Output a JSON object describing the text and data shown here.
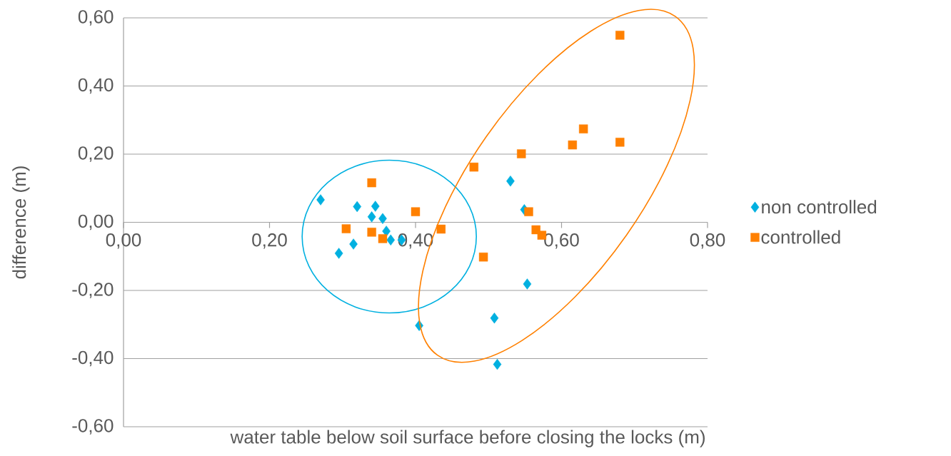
{
  "chart_data": {
    "type": "scatter",
    "xlabel": "water table below soil surface before closing the locks (m)",
    "ylabel": "difference (m)",
    "series": [
      {
        "name": "non controlled",
        "color": "#00b0e0",
        "marker": "diamond",
        "x": [
          0.27,
          0.32,
          0.345,
          0.34,
          0.355,
          0.36,
          0.366,
          0.381,
          0.315,
          0.295,
          0.405,
          0.53,
          0.549,
          0.553,
          0.508,
          0.512
        ],
        "values": [
          0.066,
          0.046,
          0.047,
          0.016,
          0.011,
          -0.026,
          -0.052,
          -0.052,
          -0.064,
          -0.091,
          -0.303,
          0.121,
          0.037,
          -0.181,
          -0.281,
          -0.417
        ]
      },
      {
        "name": "controlled",
        "color": "#ff8000",
        "marker": "square",
        "x": [
          0.34,
          0.4,
          0.305,
          0.34,
          0.355,
          0.435,
          0.68,
          0.63,
          0.615,
          0.68,
          0.545,
          0.48,
          0.555,
          0.565,
          0.573,
          0.493
        ],
        "values": [
          0.116,
          0.031,
          -0.019,
          -0.029,
          -0.048,
          -0.02,
          0.549,
          0.274,
          0.227,
          0.235,
          0.201,
          0.162,
          0.031,
          -0.022,
          -0.038,
          -0.102
        ]
      }
    ],
    "xlim": [
      0,
      0.8
    ],
    "xticks": [
      {
        "value": 0,
        "label": "0,00"
      },
      {
        "value": 0.2,
        "label": "0,20"
      },
      {
        "value": 0.4,
        "label": "0,40"
      },
      {
        "value": 0.6,
        "label": "0,60"
      },
      {
        "value": 0.8,
        "label": "0,80"
      }
    ],
    "ylim": [
      -0.6,
      0.6
    ],
    "yticks": [
      {
        "value": -0.6,
        "label": "-0,60"
      },
      {
        "value": -0.4,
        "label": "-0,40"
      },
      {
        "value": -0.2,
        "label": "-0,20"
      },
      {
        "value": 0,
        "label": "0,00"
      },
      {
        "value": 0.2,
        "label": "0,20"
      },
      {
        "value": 0.4,
        "label": "0,40"
      },
      {
        "value": 0.6,
        "label": "0,60"
      }
    ],
    "grid": "y",
    "legend": "right"
  }
}
